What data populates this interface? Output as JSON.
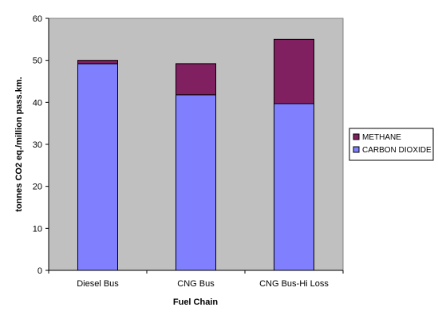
{
  "chart_data": {
    "type": "bar",
    "stacked": true,
    "title": "",
    "xlabel": "Fuel Chain",
    "ylabel": "tonnes CO2 eq./million pass.km.",
    "categories": [
      "Diesel Bus",
      "CNG Bus",
      "CNG Bus-Hi Loss"
    ],
    "ylim": [
      0,
      60
    ],
    "yticks": [
      0,
      10,
      20,
      30,
      40,
      50,
      60
    ],
    "grid": false,
    "legend_position": "right",
    "series": [
      {
        "name": "CARBON DIOXIDE",
        "values": [
          49.2,
          41.8,
          39.7
        ],
        "color": "#8080ff"
      },
      {
        "name": "METHANE",
        "values": [
          0.8,
          7.4,
          15.3
        ],
        "color": "#802060"
      }
    ],
    "plot_background": "#c0c0c0"
  }
}
